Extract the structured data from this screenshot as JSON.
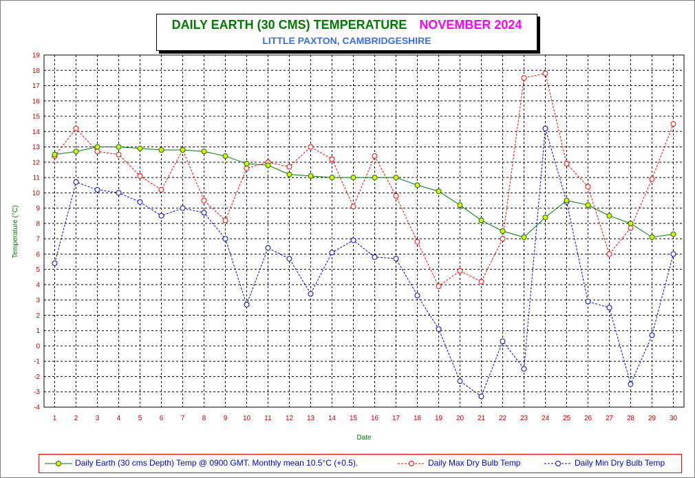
{
  "title": "DAILY EARTH (30 CMS) TEMPERATURE",
  "month": "NOVEMBER 2024",
  "subtitle": "LITTLE PAXTON, CAMBRIDGESHIRE",
  "colors": {
    "earth_line": "#007a00",
    "earth_marker": "#e8f000",
    "max_series": "#ff0000",
    "min_series": "#0000cc",
    "title_green": "#007a00",
    "title_magenta": "#ff00ff",
    "subtitle_blue": "#3a6ee8"
  },
  "chart_data": {
    "type": "line",
    "xlabel": "Date",
    "ylabel": "Temperature (°C)",
    "x": [
      1,
      2,
      3,
      4,
      5,
      6,
      7,
      8,
      9,
      10,
      11,
      12,
      13,
      14,
      15,
      16,
      17,
      18,
      19,
      20,
      21,
      22,
      23,
      24,
      25,
      26,
      27,
      28,
      29,
      30
    ],
    "ylim": [
      -4,
      19
    ],
    "yticks": [
      -4,
      -3,
      -2,
      -1,
      0,
      1,
      2,
      3,
      4,
      5,
      6,
      7,
      8,
      9,
      10,
      11,
      12,
      13,
      14,
      15,
      16,
      17,
      18,
      19
    ],
    "grid": true,
    "legend_position": "bottom",
    "series": [
      {
        "name": "Daily Earth (30 cms Depth) Temp @ 0900 GMT. Monthly mean 10.5°C (+0.5).",
        "style": "solid",
        "values": [
          12.5,
          12.7,
          13.0,
          13.0,
          12.9,
          12.8,
          12.8,
          12.7,
          12.4,
          11.9,
          11.8,
          11.2,
          11.1,
          11.0,
          11.0,
          11.0,
          11.0,
          10.5,
          10.1,
          9.2,
          8.2,
          7.5,
          7.1,
          8.4,
          9.5,
          9.2,
          8.5,
          8.0,
          7.1,
          7.3
        ]
      },
      {
        "name": "Daily Max Dry Bulb Temp",
        "style": "dashed",
        "values": [
          12.4,
          14.2,
          12.7,
          12.5,
          11.1,
          10.2,
          12.8,
          9.5,
          8.2,
          11.6,
          12.0,
          11.7,
          13.0,
          12.2,
          9.1,
          12.4,
          9.8,
          6.8,
          3.9,
          4.9,
          4.2,
          7.0,
          17.5,
          17.8,
          11.9,
          10.4,
          6.0,
          7.7,
          10.9,
          14.5
        ]
      },
      {
        "name": "Daily Min Dry Bulb Temp",
        "style": "dashed",
        "values": [
          5.4,
          10.7,
          10.2,
          10.0,
          9.4,
          8.5,
          9.0,
          8.7,
          7.0,
          2.7,
          6.4,
          5.7,
          3.4,
          6.1,
          6.9,
          5.8,
          5.7,
          3.3,
          1.1,
          -2.3,
          -3.3,
          0.3,
          -1.5,
          14.2,
          9.4,
          2.9,
          2.5,
          -2.5,
          0.7,
          6.0
        ]
      }
    ]
  }
}
